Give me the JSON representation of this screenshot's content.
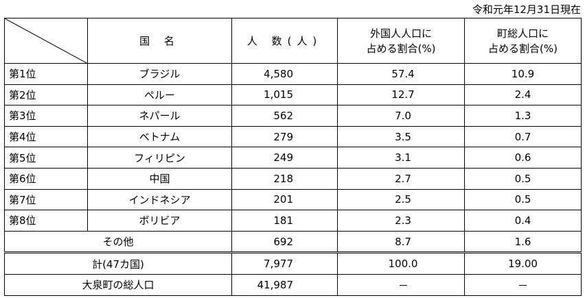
{
  "note": "令和元年12月31日現在",
  "headers": {
    "country": "国 名",
    "population": "人 数(人)",
    "foreign_share_line1": "外国人人口に",
    "foreign_share_line2": "占める割合(%)",
    "town_share_line1": "町総人口に",
    "town_share_line2": "占める割合(%)"
  },
  "rows": [
    {
      "rank": "第1位",
      "country": "ブラジル",
      "population": "4,580",
      "foreign_share": "57.4",
      "town_share": "10.9"
    },
    {
      "rank": "第2位",
      "country": "ペルー",
      "population": "1,015",
      "foreign_share": "12.7",
      "town_share": "2.4"
    },
    {
      "rank": "第3位",
      "country": "ネパール",
      "population": "562",
      "foreign_share": "7.0",
      "town_share": "1.3"
    },
    {
      "rank": "第4位",
      "country": "ベトナム",
      "population": "279",
      "foreign_share": "3.5",
      "town_share": "0.7"
    },
    {
      "rank": "第5位",
      "country": "フィリピン",
      "population": "249",
      "foreign_share": "3.1",
      "town_share": "0.6"
    },
    {
      "rank": "第6位",
      "country": "中国",
      "population": "218",
      "foreign_share": "2.7",
      "town_share": "0.5"
    },
    {
      "rank": "第7位",
      "country": "インドネシア",
      "population": "201",
      "foreign_share": "2.5",
      "town_share": "0.5"
    },
    {
      "rank": "第8位",
      "country": "ボリビア",
      "population": "181",
      "foreign_share": "2.3",
      "town_share": "0.4"
    }
  ],
  "others": {
    "label": "その他",
    "population": "692",
    "foreign_share": "8.7",
    "town_share": "1.6"
  },
  "total": {
    "label": "計(47カ国)",
    "population": "7,977",
    "foreign_share": "100.0",
    "town_share": "19.00"
  },
  "town_total": {
    "label": "大泉町の総人口",
    "population": "41,987"
  }
}
